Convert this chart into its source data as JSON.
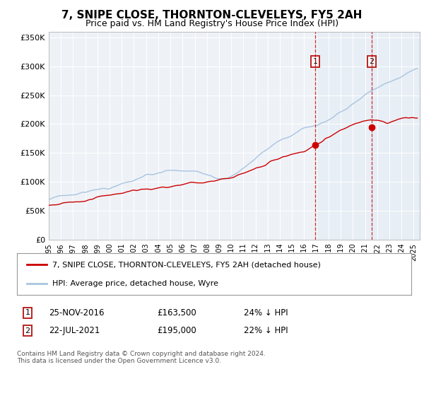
{
  "title": "7, SNIPE CLOSE, THORNTON-CLEVELEYS, FY5 2AH",
  "subtitle": "Price paid vs. HM Land Registry's House Price Index (HPI)",
  "ylim": [
    0,
    360000
  ],
  "yticks": [
    0,
    50000,
    100000,
    150000,
    200000,
    250000,
    300000,
    350000
  ],
  "ytick_labels": [
    "£0",
    "£50K",
    "£100K",
    "£150K",
    "£200K",
    "£250K",
    "£300K",
    "£350K"
  ],
  "hpi_color": "#a8c4e0",
  "price_color": "#cc0000",
  "point1_year": 2016.9,
  "point1_price": 163500,
  "point2_year": 2021.55,
  "point2_price": 195000,
  "legend_line1": "7, SNIPE CLOSE, THORNTON-CLEVELEYS, FY5 2AH (detached house)",
  "legend_line2": "HPI: Average price, detached house, Wyre",
  "info1_label": "1",
  "info1_date": "25-NOV-2016",
  "info1_price": "£163,500",
  "info1_pct": "24% ↓ HPI",
  "info2_label": "2",
  "info2_date": "22-JUL-2021",
  "info2_price": "£195,000",
  "info2_pct": "22% ↓ HPI",
  "footer": "Contains HM Land Registry data © Crown copyright and database right 2024.\nThis data is licensed under the Open Government Licence v3.0.",
  "bg_color": "#ffffff",
  "plot_bg_color": "#eef2f7"
}
